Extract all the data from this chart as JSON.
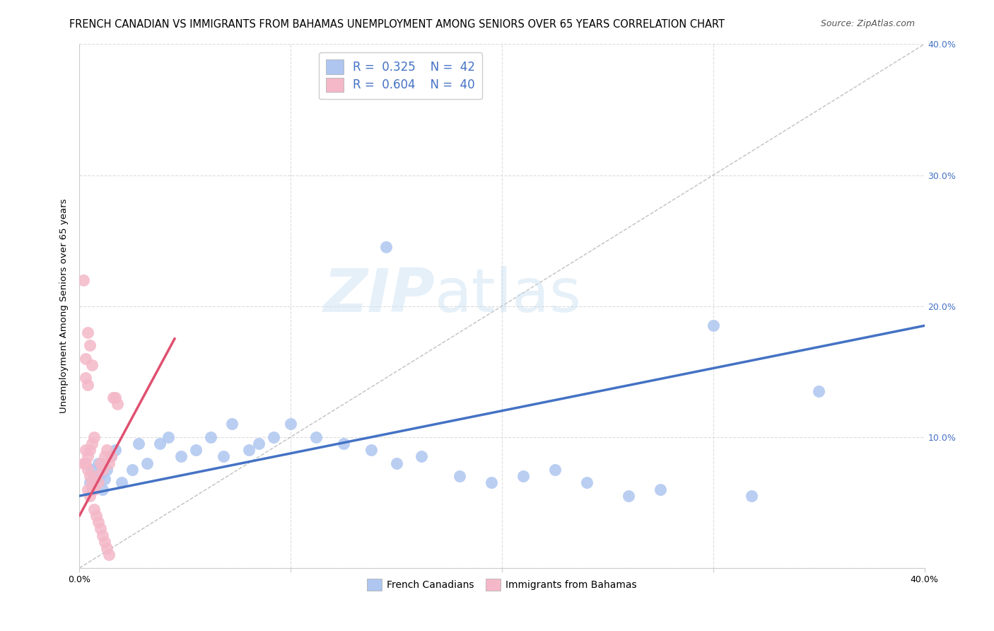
{
  "title": "FRENCH CANADIAN VS IMMIGRANTS FROM BAHAMAS UNEMPLOYMENT AMONG SENIORS OVER 65 YEARS CORRELATION CHART",
  "source": "Source: ZipAtlas.com",
  "ylabel": "Unemployment Among Seniors over 65 years",
  "xlim": [
    0,
    0.4
  ],
  "ylim": [
    0,
    0.4
  ],
  "xtick_positions": [
    0.0,
    0.1,
    0.2,
    0.3,
    0.4
  ],
  "xtick_labels": [
    "0.0%",
    "",
    "",
    "",
    "40.0%"
  ],
  "ytick_positions": [
    0.0,
    0.1,
    0.2,
    0.3,
    0.4
  ],
  "ytick_labels_left": [
    "",
    "",
    "",
    "",
    ""
  ],
  "ytick_labels_right": [
    "",
    "10.0%",
    "20.0%",
    "30.0%",
    "40.0%"
  ],
  "legend_R_blue": "0.325",
  "legend_N_blue": "42",
  "legend_R_pink": "0.604",
  "legend_N_pink": "40",
  "watermark_line1": "ZIP",
  "watermark_line2": "atlas",
  "blue_color": "#4472C4",
  "pink_color": "#E05070",
  "blue_dot_color": "#aec6f0",
  "pink_dot_color": "#f4b8c8",
  "blue_points": [
    [
      0.005,
      0.065
    ],
    [
      0.006,
      0.075
    ],
    [
      0.007,
      0.07
    ],
    [
      0.008,
      0.068
    ],
    [
      0.009,
      0.08
    ],
    [
      0.01,
      0.072
    ],
    [
      0.011,
      0.06
    ],
    [
      0.012,
      0.068
    ],
    [
      0.013,
      0.075
    ],
    [
      0.015,
      0.085
    ],
    [
      0.017,
      0.09
    ],
    [
      0.02,
      0.065
    ],
    [
      0.025,
      0.075
    ],
    [
      0.028,
      0.095
    ],
    [
      0.032,
      0.08
    ],
    [
      0.038,
      0.095
    ],
    [
      0.042,
      0.1
    ],
    [
      0.048,
      0.085
    ],
    [
      0.055,
      0.09
    ],
    [
      0.062,
      0.1
    ],
    [
      0.068,
      0.085
    ],
    [
      0.072,
      0.11
    ],
    [
      0.08,
      0.09
    ],
    [
      0.085,
      0.095
    ],
    [
      0.092,
      0.1
    ],
    [
      0.1,
      0.11
    ],
    [
      0.112,
      0.1
    ],
    [
      0.125,
      0.095
    ],
    [
      0.138,
      0.09
    ],
    [
      0.15,
      0.08
    ],
    [
      0.162,
      0.085
    ],
    [
      0.18,
      0.07
    ],
    [
      0.195,
      0.065
    ],
    [
      0.21,
      0.07
    ],
    [
      0.225,
      0.075
    ],
    [
      0.24,
      0.065
    ],
    [
      0.26,
      0.055
    ],
    [
      0.275,
      0.06
    ],
    [
      0.3,
      0.185
    ],
    [
      0.318,
      0.055
    ],
    [
      0.35,
      0.135
    ],
    [
      0.145,
      0.245
    ]
  ],
  "pink_points": [
    [
      0.004,
      0.06
    ],
    [
      0.005,
      0.055
    ],
    [
      0.006,
      0.065
    ],
    [
      0.007,
      0.06
    ],
    [
      0.008,
      0.07
    ],
    [
      0.009,
      0.065
    ],
    [
      0.01,
      0.08
    ],
    [
      0.011,
      0.075
    ],
    [
      0.012,
      0.085
    ],
    [
      0.013,
      0.09
    ],
    [
      0.014,
      0.08
    ],
    [
      0.015,
      0.085
    ],
    [
      0.016,
      0.13
    ],
    [
      0.017,
      0.13
    ],
    [
      0.018,
      0.125
    ],
    [
      0.002,
      0.08
    ],
    [
      0.003,
      0.09
    ],
    [
      0.004,
      0.075
    ],
    [
      0.005,
      0.07
    ],
    [
      0.006,
      0.06
    ],
    [
      0.003,
      0.16
    ],
    [
      0.004,
      0.18
    ],
    [
      0.005,
      0.17
    ],
    [
      0.006,
      0.155
    ],
    [
      0.007,
      0.045
    ],
    [
      0.008,
      0.04
    ],
    [
      0.009,
      0.035
    ],
    [
      0.01,
      0.03
    ],
    [
      0.011,
      0.025
    ],
    [
      0.012,
      0.02
    ],
    [
      0.013,
      0.015
    ],
    [
      0.014,
      0.01
    ],
    [
      0.002,
      0.22
    ],
    [
      0.003,
      0.08
    ],
    [
      0.004,
      0.085
    ],
    [
      0.005,
      0.09
    ],
    [
      0.006,
      0.095
    ],
    [
      0.007,
      0.1
    ],
    [
      0.003,
      0.145
    ],
    [
      0.004,
      0.14
    ]
  ],
  "blue_trend_x": [
    0.0,
    0.4
  ],
  "blue_trend_y": [
    0.055,
    0.185
  ],
  "pink_trend_x": [
    0.0,
    0.045
  ],
  "pink_trend_y": [
    0.04,
    0.175
  ],
  "diagonal_line": [
    [
      0.0,
      0.0
    ],
    [
      0.4,
      0.4
    ]
  ],
  "background_color": "#ffffff",
  "grid_color": "#dddddd",
  "title_fontsize": 10.5,
  "axis_label_fontsize": 9.5,
  "tick_fontsize": 9,
  "legend_fontsize": 12,
  "right_ytick_color": "#4472C4"
}
